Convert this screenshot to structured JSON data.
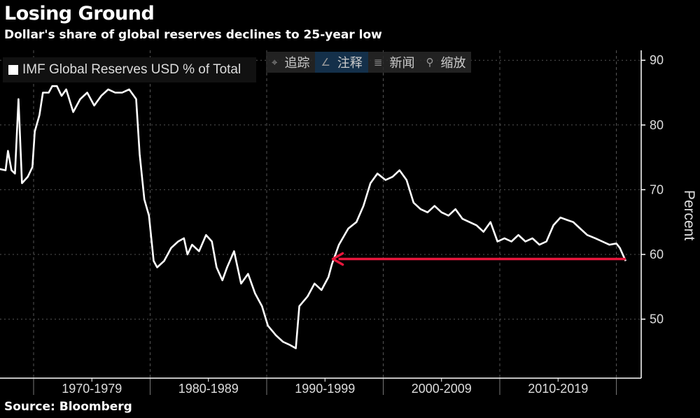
{
  "header": {
    "title": "Losing Ground",
    "subtitle": "Dollar's share of global reserves declines to 25-year low"
  },
  "toolbar": {
    "items": [
      {
        "label": "追踪",
        "icon": "crosshair-icon"
      },
      {
        "label": "注释",
        "icon": "pencil-icon",
        "active": true
      },
      {
        "label": "新闻",
        "icon": "list-icon"
      },
      {
        "label": "缩放",
        "icon": "magnifier-icon"
      }
    ]
  },
  "footer": {
    "source": "Source: Bloomberg"
  },
  "colors": {
    "background": "#000000",
    "line": "#ffffff",
    "arrow": "#e8173c",
    "grid": "#555555"
  },
  "chart_data": {
    "type": "line",
    "title": "Losing Ground",
    "subtitle": "Dollar's share of global reserves declines to 25-year low",
    "ylabel": "Percent",
    "ylim": [
      43,
      92
    ],
    "xlim": [
      1967.1,
      2022.1
    ],
    "yticks": [
      50,
      60,
      70,
      80,
      90
    ],
    "xtick_labels": [
      "1970-1979",
      "1980-1989",
      "1990-1999",
      "2000-2009",
      "2010-2019"
    ],
    "decade_boundaries": [
      1970,
      1980,
      1990,
      2000,
      2010,
      2020
    ],
    "y_axis_position": "right",
    "grid": true,
    "legend_position": "top-left",
    "series": [
      {
        "name": "IMF Global Reserves USD % of Total",
        "points": [
          [
            1967.1,
            73.2
          ],
          [
            1967.6,
            73
          ],
          [
            1967.8,
            76
          ],
          [
            1968.1,
            73
          ],
          [
            1968.4,
            72.5
          ],
          [
            1968.7,
            84
          ],
          [
            1969.0,
            71
          ],
          [
            1969.5,
            72
          ],
          [
            1969.9,
            73.5
          ],
          [
            1970.1,
            79
          ],
          [
            1970.5,
            81.5
          ],
          [
            1970.8,
            85
          ],
          [
            1971.3,
            85
          ],
          [
            1971.6,
            86
          ],
          [
            1972.0,
            86
          ],
          [
            1972.4,
            84.5
          ],
          [
            1972.8,
            85.5
          ],
          [
            1973.4,
            82
          ],
          [
            1974.0,
            84
          ],
          [
            1974.6,
            85
          ],
          [
            1975.2,
            83
          ],
          [
            1975.8,
            84.5
          ],
          [
            1976.4,
            85.5
          ],
          [
            1977.0,
            85
          ],
          [
            1977.6,
            85
          ],
          [
            1978.2,
            85.5
          ],
          [
            1978.6,
            84.5
          ],
          [
            1978.8,
            84
          ],
          [
            1979.1,
            75.5
          ],
          [
            1979.5,
            68.5
          ],
          [
            1979.9,
            66
          ],
          [
            1980.3,
            59
          ],
          [
            1980.6,
            58
          ],
          [
            1981.2,
            59
          ],
          [
            1981.8,
            61
          ],
          [
            1982.4,
            62
          ],
          [
            1982.9,
            62.5
          ],
          [
            1983.2,
            60
          ],
          [
            1983.6,
            61.5
          ],
          [
            1984.2,
            60.5
          ],
          [
            1984.8,
            63
          ],
          [
            1985.3,
            62
          ],
          [
            1985.7,
            58
          ],
          [
            1986.2,
            56
          ],
          [
            1986.6,
            58
          ],
          [
            1987.2,
            60.5
          ],
          [
            1987.8,
            55.5
          ],
          [
            1988.4,
            57
          ],
          [
            1989.0,
            54
          ],
          [
            1989.6,
            52
          ],
          [
            1990.1,
            49
          ],
          [
            1990.8,
            47.5
          ],
          [
            1991.4,
            46.5
          ],
          [
            1992.0,
            46
          ],
          [
            1992.5,
            45.5
          ],
          [
            1992.8,
            52
          ],
          [
            1993.5,
            53.5
          ],
          [
            1994.1,
            55.5
          ],
          [
            1994.7,
            54.5
          ],
          [
            1995.3,
            56.5
          ],
          [
            1995.6,
            58.5
          ],
          [
            1996.2,
            61.5
          ],
          [
            1997.0,
            64
          ],
          [
            1997.7,
            65
          ],
          [
            1998.3,
            67.5
          ],
          [
            1998.9,
            71
          ],
          [
            1999.5,
            72.5
          ],
          [
            2000.2,
            71.5
          ],
          [
            2000.8,
            72
          ],
          [
            2001.4,
            73
          ],
          [
            2002.0,
            71.5
          ],
          [
            2002.6,
            68
          ],
          [
            2003.2,
            67
          ],
          [
            2003.8,
            66.5
          ],
          [
            2004.4,
            67.5
          ],
          [
            2005.0,
            66.5
          ],
          [
            2005.6,
            66
          ],
          [
            2006.2,
            67
          ],
          [
            2006.8,
            65.5
          ],
          [
            2007.4,
            65
          ],
          [
            2008.0,
            64.5
          ],
          [
            2008.6,
            63.5
          ],
          [
            2009.2,
            65
          ],
          [
            2009.8,
            62
          ],
          [
            2010.4,
            62.5
          ],
          [
            2011.0,
            62
          ],
          [
            2011.6,
            63
          ],
          [
            2012.2,
            62
          ],
          [
            2012.8,
            62.5
          ],
          [
            2013.4,
            61.5
          ],
          [
            2014.0,
            62
          ],
          [
            2014.6,
            64.5
          ],
          [
            2015.2,
            65.7
          ],
          [
            2015.8,
            65.3
          ],
          [
            2016.3,
            65
          ],
          [
            2016.9,
            64
          ],
          [
            2017.5,
            63
          ],
          [
            2018.2,
            62.5
          ],
          [
            2018.8,
            62
          ],
          [
            2019.4,
            61.5
          ],
          [
            2020.0,
            61.7
          ],
          [
            2020.3,
            61
          ],
          [
            2020.8,
            59
          ]
        ]
      }
    ],
    "annotations": [
      {
        "type": "arrow",
        "from": [
          2020.8,
          59.3
        ],
        "to": [
          1995.8,
          59.3
        ],
        "color": "#e8173c"
      }
    ]
  }
}
